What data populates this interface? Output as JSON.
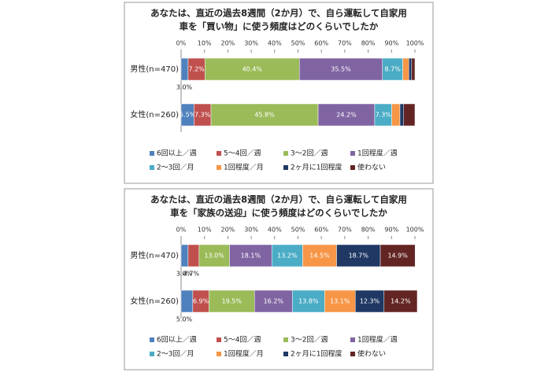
{
  "chart_data": [
    {
      "type": "bar",
      "orientation": "horizontal",
      "stacked": true,
      "title": [
        "あなたは、直近の過去8週間（2か月）で、自ら運転して自家用",
        "車を「買い物」に使う頻度はどのくらいでしたか"
      ],
      "categories": [
        "男性(n=470)",
        "女性(n=260)"
      ],
      "xlim": [
        0,
        100
      ],
      "xticks": [
        {
          "value": 0,
          "label": "0%"
        },
        {
          "value": 10,
          "label": "10%"
        },
        {
          "value": 20,
          "label": "20%"
        },
        {
          "value": 30,
          "label": "30%"
        },
        {
          "value": 40,
          "label": "40%"
        },
        {
          "value": 50,
          "label": "50%"
        },
        {
          "value": 60,
          "label": "60%"
        },
        {
          "value": 70,
          "label": "70%"
        },
        {
          "value": 80,
          "label": "80%"
        },
        {
          "value": 90,
          "label": "90%"
        },
        {
          "value": 100,
          "label": "100%"
        }
      ],
      "series": [
        {
          "name": "6回以上／週",
          "color": "#4f81bd",
          "values": [
            3.0,
            5.5
          ],
          "value_labels": [
            "3.0%",
            "5.5%"
          ]
        },
        {
          "name": "5〜4回／週",
          "color": "#c0504d",
          "values": [
            7.2,
            7.3
          ],
          "value_labels": [
            "7.2%",
            "7.3%"
          ]
        },
        {
          "name": "3〜2回／週",
          "color": "#9bbb59",
          "values": [
            40.4,
            45.8
          ],
          "value_labels": [
            "40.4%",
            "45.8%"
          ]
        },
        {
          "name": "1回程度／週",
          "color": "#8064a2",
          "values": [
            35.5,
            24.2
          ],
          "value_labels": [
            "35.5%",
            "24.2%"
          ]
        },
        {
          "name": "2〜3回／月",
          "color": "#4bacc6",
          "values": [
            8.7,
            7.3
          ],
          "value_labels": [
            "8.7%",
            "7.3%"
          ]
        },
        {
          "name": "1回程度／月",
          "color": "#f79646",
          "values": [
            2.6,
            3.5
          ],
          "value_labels": [
            null,
            null
          ]
        },
        {
          "name": "2ヶ月に1回程度",
          "color": "#1f3864",
          "values": [
            1.2,
            1.6
          ],
          "value_labels": [
            null,
            null
          ]
        },
        {
          "name": "使わない",
          "color": "#632523",
          "values": [
            1.4,
            4.8
          ],
          "value_labels": [
            null,
            null
          ]
        }
      ]
    },
    {
      "type": "bar",
      "orientation": "horizontal",
      "stacked": true,
      "title": [
        "あなたは、直近の過去8週間（2か月）で、自ら運転して自家用",
        "車を「家族の送迎」に使う頻度はどのくらいでしたか"
      ],
      "categories": [
        "男性(n=470)",
        "女性(n=260)"
      ],
      "xlim": [
        0,
        100
      ],
      "xticks": [
        {
          "value": 0,
          "label": "0%"
        },
        {
          "value": 10,
          "label": "10%"
        },
        {
          "value": 20,
          "label": "20%"
        },
        {
          "value": 30,
          "label": "30%"
        },
        {
          "value": 40,
          "label": "40%"
        },
        {
          "value": 50,
          "label": "50%"
        },
        {
          "value": 60,
          "label": "60%"
        },
        {
          "value": 70,
          "label": "70%"
        },
        {
          "value": 80,
          "label": "80%"
        },
        {
          "value": 90,
          "label": "90%"
        },
        {
          "value": 100,
          "label": "100%"
        }
      ],
      "series": [
        {
          "name": "6回以上／週",
          "color": "#4f81bd",
          "values": [
            3.0,
            5.0
          ],
          "value_labels": [
            "3.0%",
            "5.0%"
          ]
        },
        {
          "name": "5〜4回／週",
          "color": "#c0504d",
          "values": [
            4.7,
            6.9
          ],
          "value_labels": [
            "4.7%",
            "6.9%"
          ]
        },
        {
          "name": "3〜2回／週",
          "color": "#9bbb59",
          "values": [
            13.0,
            19.5
          ],
          "value_labels": [
            "13.0%",
            "19.5%"
          ]
        },
        {
          "name": "1回程度／週",
          "color": "#8064a2",
          "values": [
            18.1,
            16.2
          ],
          "value_labels": [
            "18.1%",
            "16.2%"
          ]
        },
        {
          "name": "2〜3回／月",
          "color": "#4bacc6",
          "values": [
            13.2,
            13.8
          ],
          "value_labels": [
            "13.2%",
            "13.8%"
          ]
        },
        {
          "name": "1回程度／月",
          "color": "#f79646",
          "values": [
            14.5,
            13.1
          ],
          "value_labels": [
            "14.5%",
            "13.1%"
          ]
        },
        {
          "name": "2ヶ月に1回程度",
          "color": "#1f3864",
          "values": [
            18.7,
            12.3
          ],
          "value_labels": [
            "18.7%",
            "12.3%"
          ]
        },
        {
          "name": "使わない",
          "color": "#632523",
          "values": [
            14.9,
            14.2
          ],
          "value_labels": [
            "14.9%",
            "14.2%"
          ]
        }
      ]
    }
  ]
}
